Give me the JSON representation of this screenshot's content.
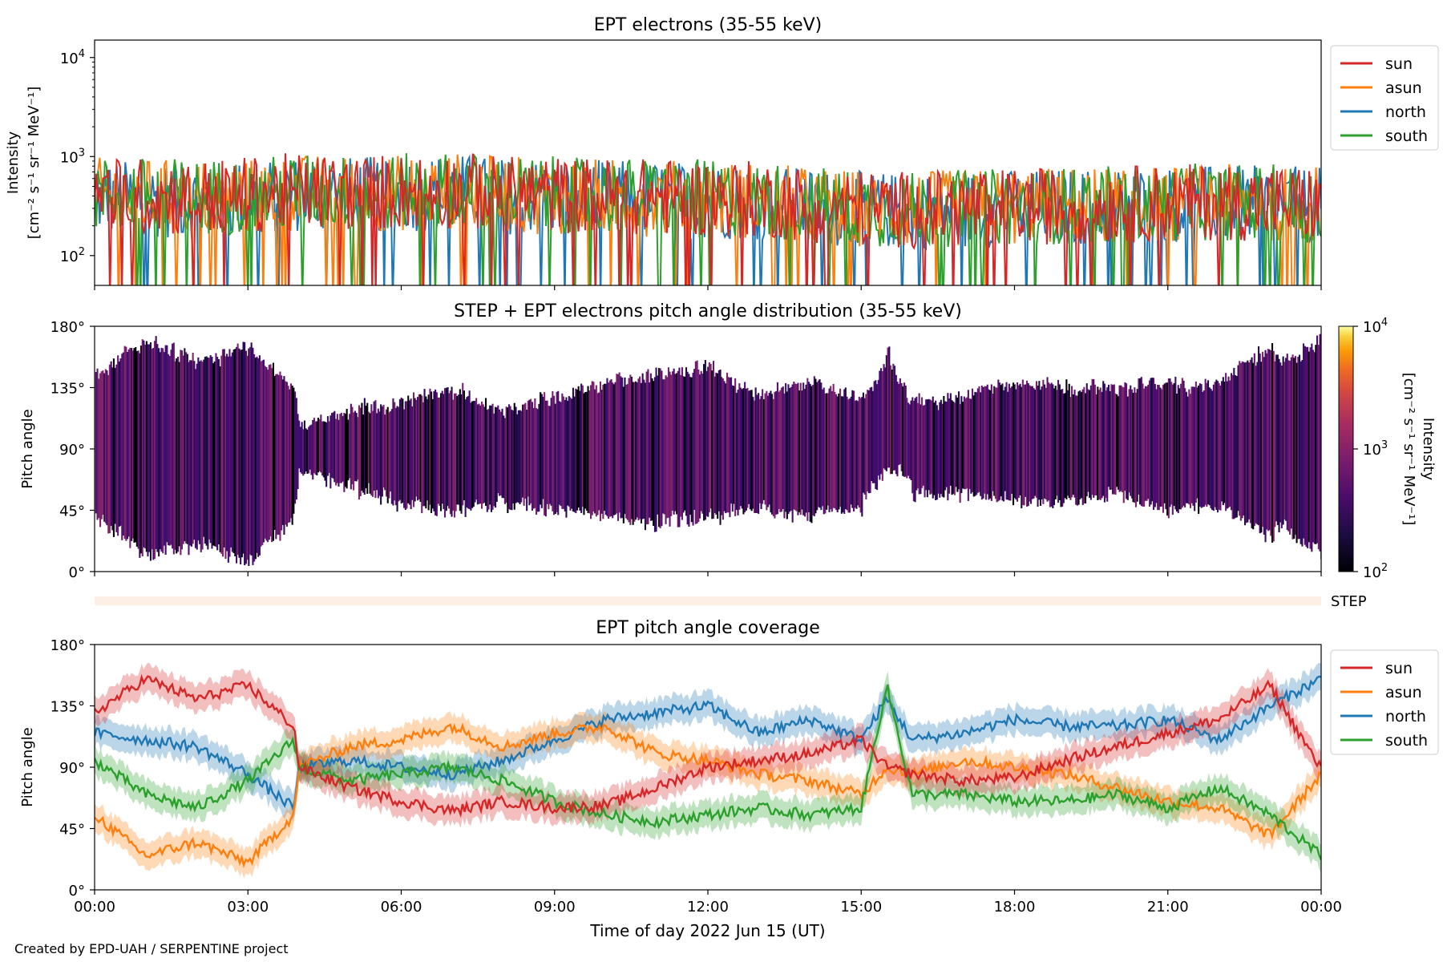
{
  "footer": "Created by EPD-UAH / SERPENTINE project",
  "x_axis": {
    "label": "Time of day 2022 Jun 15 (UT)",
    "range_hours": [
      0,
      24
    ],
    "ticks": [
      "00:00",
      "03:00",
      "06:00",
      "09:00",
      "12:00",
      "15:00",
      "18:00",
      "21:00",
      "00:00"
    ]
  },
  "series_style": [
    {
      "name": "sun",
      "color": "#d62728"
    },
    {
      "name": "asun",
      "color": "#ff7f0e"
    },
    {
      "name": "north",
      "color": "#1f77b4"
    },
    {
      "name": "south",
      "color": "#2ca02c"
    }
  ],
  "chart_data": [
    {
      "type": "line",
      "title": "EPT electrons (35-55 keV)",
      "ylabel_1": "Intensity",
      "ylabel_2": "[cm⁻² s⁻¹ sr⁻¹ MeV⁻¹]",
      "yscale": "log",
      "ylim": [
        50,
        15000
      ],
      "yticks": [
        {
          "value": 100,
          "base": "10",
          "exp": "2"
        },
        {
          "value": 1000,
          "base": "10",
          "exp": "3"
        },
        {
          "value": 10000,
          "base": "10",
          "exp": "4"
        }
      ],
      "legend": [
        "sun",
        "asun",
        "north",
        "south"
      ],
      "legend_position": "outside-right-top",
      "x_hours": [
        0,
        1,
        2,
        3,
        4,
        5,
        6,
        7,
        8,
        9,
        10,
        11,
        12,
        13,
        14,
        15,
        16,
        17,
        18,
        19,
        20,
        21,
        22,
        23,
        24
      ],
      "series": [
        {
          "name": "sun",
          "values": [
            420,
            400,
            380,
            410,
            450,
            430,
            440,
            460,
            420,
            410,
            400,
            390,
            380,
            370,
            330,
            300,
            290,
            300,
            310,
            320,
            330,
            340,
            350,
            340,
            330
          ]
        },
        {
          "name": "asun",
          "values": [
            400,
            390,
            380,
            390,
            430,
            420,
            430,
            450,
            410,
            400,
            390,
            380,
            370,
            360,
            320,
            300,
            290,
            300,
            310,
            320,
            330,
            330,
            340,
            340,
            330
          ]
        },
        {
          "name": "north",
          "values": [
            380,
            370,
            360,
            380,
            420,
            410,
            420,
            440,
            400,
            390,
            380,
            370,
            360,
            350,
            310,
            290,
            280,
            290,
            300,
            310,
            320,
            330,
            330,
            330,
            320
          ]
        },
        {
          "name": "south",
          "values": [
            410,
            400,
            390,
            400,
            440,
            430,
            440,
            460,
            420,
            410,
            400,
            390,
            380,
            370,
            330,
            300,
            290,
            300,
            310,
            320,
            330,
            340,
            350,
            340,
            330
          ]
        }
      ]
    },
    {
      "type": "heatmap",
      "title": "STEP + EPT electrons pitch angle distribution (35-55 keV)",
      "ylabel": "Pitch angle",
      "ylim": [
        0,
        180
      ],
      "yticks": [
        "0°",
        "45°",
        "90°",
        "135°",
        "180°"
      ],
      "colorbar": {
        "label_1": "Intensity",
        "label_2": "[cm⁻² s⁻¹ sr⁻¹ MeV⁻¹]",
        "scale": "log",
        "range": [
          100,
          10000
        ],
        "ticks": [
          {
            "value": 100,
            "base": "10",
            "exp": "2"
          },
          {
            "value": 1000,
            "base": "10",
            "exp": "3"
          },
          {
            "value": 10000,
            "base": "10",
            "exp": "4"
          }
        ],
        "colormap": "inferno"
      },
      "step_strip_label": "STEP",
      "typical_intensity": 350
    },
    {
      "type": "line",
      "title": "EPT pitch angle coverage",
      "ylabel": "Pitch angle",
      "ylim": [
        0,
        180
      ],
      "yticks": [
        "0°",
        "45°",
        "90°",
        "135°",
        "180°"
      ],
      "legend": [
        "sun",
        "asun",
        "north",
        "south"
      ],
      "legend_position": "outside-right-top",
      "x_hours": [
        0,
        1,
        2,
        3,
        3.9,
        4,
        5,
        6,
        7,
        8,
        9,
        10,
        11,
        12,
        13,
        14,
        15,
        15.5,
        16,
        17,
        18,
        19,
        20,
        21,
        22,
        23,
        24
      ],
      "series": [
        {
          "name": "sun",
          "values": [
            130,
            155,
            140,
            150,
            120,
            90,
            75,
            65,
            58,
            65,
            60,
            62,
            75,
            90,
            95,
            100,
            110,
            90,
            85,
            80,
            82,
            95,
            105,
            115,
            125,
            150,
            88
          ]
        },
        {
          "name": "asun",
          "values": [
            55,
            25,
            35,
            20,
            55,
            90,
            105,
            110,
            120,
            105,
            115,
            120,
            100,
            95,
            85,
            80,
            70,
            90,
            85,
            95,
            90,
            85,
            75,
            65,
            60,
            40,
            85
          ]
        },
        {
          "name": "north",
          "values": [
            115,
            110,
            105,
            85,
            60,
            90,
            95,
            90,
            85,
            95,
            110,
            125,
            130,
            135,
            115,
            125,
            110,
            140,
            110,
            115,
            125,
            120,
            120,
            125,
            110,
            135,
            155
          ]
        },
        {
          "name": "south",
          "values": [
            95,
            70,
            60,
            80,
            110,
            90,
            80,
            85,
            90,
            80,
            65,
            55,
            50,
            55,
            60,
            55,
            60,
            150,
            70,
            70,
            65,
            65,
            70,
            60,
            75,
            55,
            25
          ]
        }
      ],
      "band_halfwidth_deg": 10
    }
  ]
}
